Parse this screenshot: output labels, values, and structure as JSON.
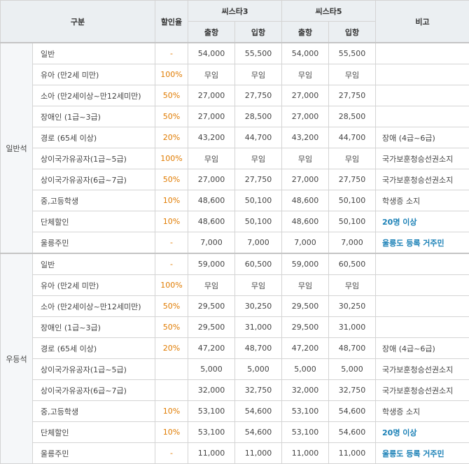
{
  "header": {
    "category": "구분",
    "discount_rate": "할인율",
    "ship1": "씨스타3",
    "ship2": "씨스타5",
    "note": "비고",
    "depart": "출항",
    "arrive": "입항"
  },
  "colors": {
    "header_bg": "#ebeff2",
    "rate_text": "#e07b00",
    "highlight_note": "#1a80b6",
    "border": "#d4d4d4"
  },
  "groups": [
    {
      "name": "일반석",
      "rows": [
        {
          "type": "일반",
          "rate": "-",
          "s3_out": "54,000",
          "s3_in": "55,500",
          "s5_out": "54,000",
          "s5_in": "55,500",
          "note": "",
          "note_highlight": false
        },
        {
          "type": "유아 (만2세 미만)",
          "rate": "100%",
          "s3_out": "무임",
          "s3_in": "무임",
          "s5_out": "무임",
          "s5_in": "무임",
          "note": "",
          "note_highlight": false
        },
        {
          "type": "소아 (만2세이상~만12세미만)",
          "rate": "50%",
          "s3_out": "27,000",
          "s3_in": "27,750",
          "s5_out": "27,000",
          "s5_in": "27,750",
          "note": "",
          "note_highlight": false
        },
        {
          "type": "장애인 (1급~3급)",
          "rate": "50%",
          "s3_out": "27,000",
          "s3_in": "28,500",
          "s5_out": "27,000",
          "s5_in": "28,500",
          "note": "",
          "note_highlight": false
        },
        {
          "type": "경로 (65세 이상)",
          "rate": "20%",
          "s3_out": "43,200",
          "s3_in": "44,700",
          "s5_out": "43,200",
          "s5_in": "44,700",
          "note": "장애 (4급~6급)",
          "note_highlight": false
        },
        {
          "type": "상이국가유공자(1급~5급)",
          "rate": "100%",
          "s3_out": "무임",
          "s3_in": "무임",
          "s5_out": "무임",
          "s5_in": "무임",
          "note": "국가보훈청승선권소지",
          "note_highlight": false
        },
        {
          "type": "상이국가유공자(6급~7급)",
          "rate": "50%",
          "s3_out": "27,000",
          "s3_in": "27,750",
          "s5_out": "27,000",
          "s5_in": "27,750",
          "note": "국가보훈청승선권소지",
          "note_highlight": false
        },
        {
          "type": "중,고등학생",
          "rate": "10%",
          "s3_out": "48,600",
          "s3_in": "50,100",
          "s5_out": "48,600",
          "s5_in": "50,100",
          "note": "학생증 소지",
          "note_highlight": false
        },
        {
          "type": "단체할인",
          "rate": "10%",
          "s3_out": "48,600",
          "s3_in": "50,100",
          "s5_out": "48,600",
          "s5_in": "50,100",
          "note": "20명 이상",
          "note_highlight": true
        },
        {
          "type": "울릉주민",
          "rate": "-",
          "s3_out": "7,000",
          "s3_in": "7,000",
          "s5_out": "7,000",
          "s5_in": "7,000",
          "note": "울릉도 등록 거주민",
          "note_highlight": true
        }
      ]
    },
    {
      "name": "우등석",
      "rows": [
        {
          "type": "일반",
          "rate": "-",
          "s3_out": "59,000",
          "s3_in": "60,500",
          "s5_out": "59,000",
          "s5_in": "60,500",
          "note": "",
          "note_highlight": false
        },
        {
          "type": "유아 (만2세 미만)",
          "rate": "100%",
          "s3_out": "무임",
          "s3_in": "무임",
          "s5_out": "무임",
          "s5_in": "무임",
          "note": "",
          "note_highlight": false
        },
        {
          "type": "소아 (만2세이상~만12세미만)",
          "rate": "50%",
          "s3_out": "29,500",
          "s3_in": "30,250",
          "s5_out": "29,500",
          "s5_in": "30,250",
          "note": "",
          "note_highlight": false
        },
        {
          "type": "장애인 (1급~3급)",
          "rate": "50%",
          "s3_out": "29,500",
          "s3_in": "31,000",
          "s5_out": "29,500",
          "s5_in": "31,000",
          "note": "",
          "note_highlight": false
        },
        {
          "type": "경로 (65세 이상)",
          "rate": "20%",
          "s3_out": "47,200",
          "s3_in": "48,700",
          "s5_out": "47,200",
          "s5_in": "48,700",
          "note": "장애 (4급~6급)",
          "note_highlight": false
        },
        {
          "type": "상이국가유공자(1급~5급)",
          "rate": "",
          "s3_out": "5,000",
          "s3_in": "5,000",
          "s5_out": "5,000",
          "s5_in": "5,000",
          "note": "국가보훈청승선권소지",
          "note_highlight": false
        },
        {
          "type": "상이국가유공자(6급~7급)",
          "rate": "",
          "s3_out": "32,000",
          "s3_in": "32,750",
          "s5_out": "32,000",
          "s5_in": "32,750",
          "note": "국가보훈청승선권소지",
          "note_highlight": false
        },
        {
          "type": "중,고등학생",
          "rate": "10%",
          "s3_out": "53,100",
          "s3_in": "54,600",
          "s5_out": "53,100",
          "s5_in": "54,600",
          "note": "학생증 소지",
          "note_highlight": false
        },
        {
          "type": "단체할인",
          "rate": "10%",
          "s3_out": "53,100",
          "s3_in": "54,600",
          "s5_out": "53,100",
          "s5_in": "54,600",
          "note": "20명 이상",
          "note_highlight": true
        },
        {
          "type": "울릉주민",
          "rate": "-",
          "s3_out": "11,000",
          "s3_in": "11,000",
          "s5_out": "11,000",
          "s5_in": "11,000",
          "note": "울릉도 등록 거주민",
          "note_highlight": true
        }
      ]
    }
  ]
}
